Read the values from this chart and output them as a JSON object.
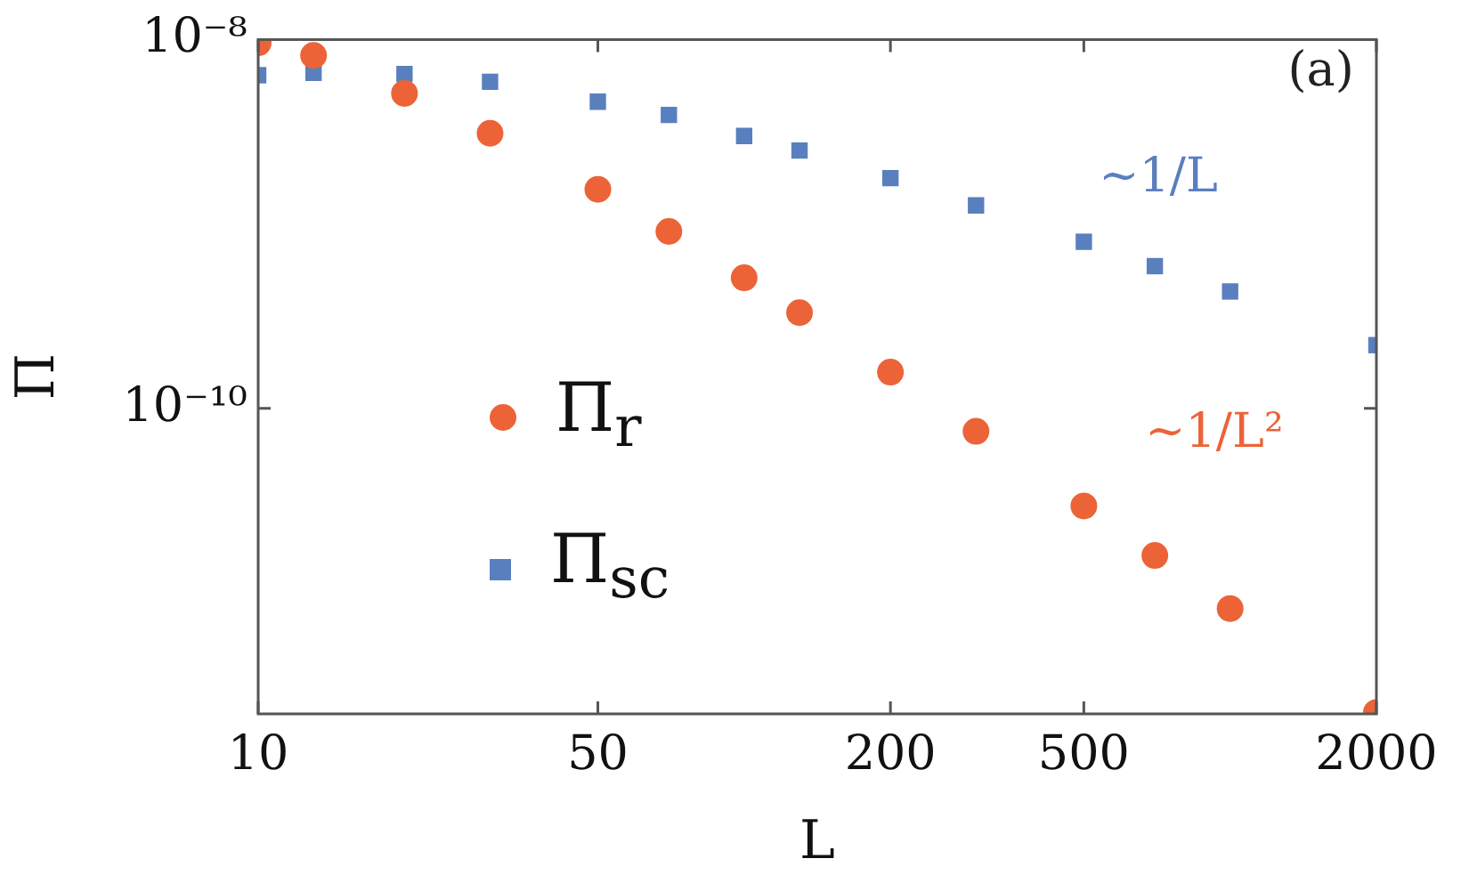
{
  "chart_data": {
    "type": "scatter",
    "xlabel": "L",
    "ylabel": "Π",
    "log": "xy",
    "legend": "left",
    "grid": false,
    "x": [
      10,
      13,
      20,
      30,
      50,
      70,
      100,
      130,
      200,
      300,
      500,
      700,
      1000,
      2000
    ],
    "xlim": [
      10,
      2000
    ],
    "xticks": [
      10,
      50,
      200,
      500,
      2000
    ],
    "ylim": [
      2.2e-12,
      1e-08
    ],
    "yticks": [
      {
        "value": 1e-08,
        "label": "10⁻⁸"
      },
      {
        "value": 1e-10,
        "label": "10⁻¹⁰"
      }
    ],
    "series": [
      {
        "name": "Π$_{r}$",
        "color": "#ec6337",
        "marker": "circle",
        "values": [
          9.6e-09,
          8.2e-09,
          5.1e-09,
          3.1e-09,
          1.54e-09,
          9.1e-10,
          5.1e-10,
          3.3e-10,
          1.57e-10,
          7.5e-11,
          2.95e-11,
          1.59e-11,
          8.2e-12,
          2.24e-12
        ]
      },
      {
        "name": "Π$_{sc}$",
        "color": "#5a7fbf",
        "marker": "square",
        "values": [
          6.4e-09,
          6.6e-09,
          6.5e-09,
          5.9e-09,
          4.6e-09,
          3.9e-09,
          3e-09,
          2.5e-09,
          1.77e-09,
          1.26e-09,
          8e-10,
          5.9e-10,
          4.3e-10,
          2.2e-10
        ]
      }
    ],
    "annotations": [
      "∼1/L²",
      "∼1/L",
      "(a)"
    ]
  }
}
